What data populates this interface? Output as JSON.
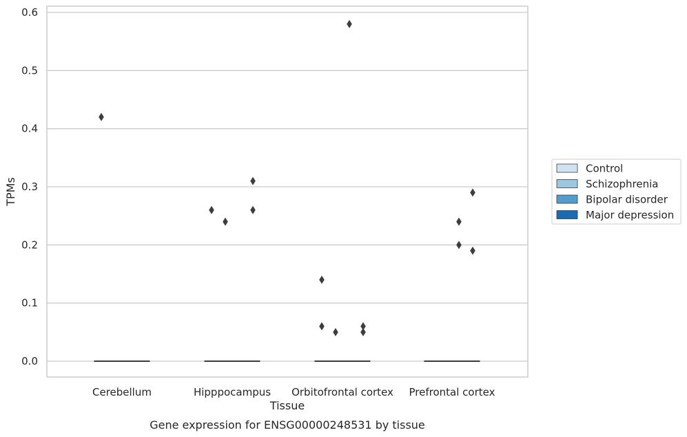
{
  "chart_data": {
    "type": "box",
    "title": "",
    "xlabel": "Tissue",
    "ylabel": "TPMs",
    "caption": "Gene expression for ENSG00000248531 by tissue",
    "categories": [
      "Cerebellum",
      "Hipppocampus",
      "Orbitofrontal cortex",
      "Prefrontal cortex"
    ],
    "ylim": [
      -0.03,
      0.61
    ],
    "yticks": [
      0.0,
      0.1,
      0.2,
      0.3,
      0.4,
      0.5,
      0.6
    ],
    "ytick_labels": [
      "0.0",
      "0.1",
      "0.2",
      "0.3",
      "0.4",
      "0.5",
      "0.6"
    ],
    "grid": true,
    "legend_position": "right",
    "series": [
      {
        "name": "Control",
        "color": "#d1e2f2"
      },
      {
        "name": "Schizophrenia",
        "color": "#9ac8e0"
      },
      {
        "name": "Bipolar disorder",
        "color": "#529dcc"
      },
      {
        "name": "Major depression",
        "color": "#1c6aaf"
      }
    ],
    "boxes": [
      {
        "category": "Cerebellum",
        "median": 0.0,
        "q1": 0.0,
        "q3": 0.0
      },
      {
        "category": "Hipppocampus",
        "median": 0.0,
        "q1": 0.0,
        "q3": 0.0
      },
      {
        "category": "Orbitofrontal cortex",
        "median": 0.0,
        "q1": 0.0,
        "q3": 0.0
      },
      {
        "category": "Prefrontal cortex",
        "median": 0.0,
        "q1": 0.0,
        "q3": 0.0
      }
    ],
    "outliers": [
      {
        "category": "Cerebellum",
        "series": "Control",
        "y": 0.42
      },
      {
        "category": "Hipppocampus",
        "series": "Control",
        "y": 0.26
      },
      {
        "category": "Hipppocampus",
        "series": "Schizophrenia",
        "y": 0.24
      },
      {
        "category": "Hipppocampus",
        "series": "Major depression",
        "y": 0.31
      },
      {
        "category": "Hipppocampus",
        "series": "Major depression",
        "y": 0.26
      },
      {
        "category": "Orbitofrontal cortex",
        "series": "Control",
        "y": 0.14
      },
      {
        "category": "Orbitofrontal cortex",
        "series": "Control",
        "y": 0.06
      },
      {
        "category": "Orbitofrontal cortex",
        "series": "Schizophrenia",
        "y": 0.05
      },
      {
        "category": "Orbitofrontal cortex",
        "series": "Bipolar disorder",
        "y": 0.58
      },
      {
        "category": "Orbitofrontal cortex",
        "series": "Major depression",
        "y": 0.06
      },
      {
        "category": "Orbitofrontal cortex",
        "series": "Major depression",
        "y": 0.05
      },
      {
        "category": "Prefrontal cortex",
        "series": "Bipolar disorder",
        "y": 0.24
      },
      {
        "category": "Prefrontal cortex",
        "series": "Bipolar disorder",
        "y": 0.2
      },
      {
        "category": "Prefrontal cortex",
        "series": "Major depression",
        "y": 0.29
      },
      {
        "category": "Prefrontal cortex",
        "series": "Major depression",
        "y": 0.19
      }
    ]
  }
}
